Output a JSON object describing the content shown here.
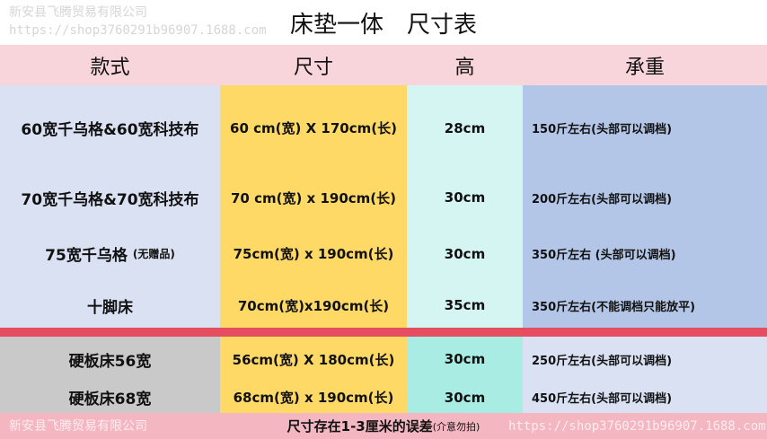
{
  "title": "床垫一体　尺寸表",
  "headers": [
    "款式",
    "尺寸",
    "高",
    "承重"
  ],
  "rows": [
    {
      "style": "60宽千乌格&60宽科技布",
      "size": "60 cm(宽) X 170cm(长)",
      "height": "28cm",
      "load": "150斤左右(头部可以调档)"
    },
    {
      "style": "70宽千乌格&70宽科技布",
      "size": "70 cm(宽) x 190cm(长)",
      "height": "30cm",
      "load": "200斤左右(头部可以调档)"
    },
    {
      "style": "75宽千乌格",
      "style_note": "(无赠品)",
      "size": "75cm(宽) x 190cm(长)",
      "height": "30cm",
      "load": "350斤左右 (头部可以调档)"
    },
    {
      "style": "十脚床",
      "size": "70cm(宽)x190cm(长)",
      "height": "35cm",
      "load": "350斤左右(不能调档只能放平)"
    }
  ],
  "rows2": [
    {
      "style": "硬板床56宽",
      "size": "56cm(宽) X 180cm(长)",
      "height": "30cm",
      "load": "250斤左右(头部可以调档)"
    },
    {
      "style": "硬板床68宽",
      "size": "68cm(宽) x 190cm(长)",
      "height": "30cm",
      "load": "450斤左右(头部可以调档)"
    }
  ],
  "footer": {
    "text": "尺寸存在1-3厘米的误差",
    "note": "(介意勿拍)"
  },
  "watermark": {
    "company": "新安县飞腾贸易有限公司",
    "url": "https://shop3760291b96907.1688.com"
  },
  "colors": {
    "header": "#f8d5db",
    "divider": "#e54d60",
    "footer": "#f4b6c0",
    "col1": "#d9e1f2",
    "col2": "#ffd966",
    "col3": "#d5f5f3",
    "col4": "#b4c6e7"
  }
}
